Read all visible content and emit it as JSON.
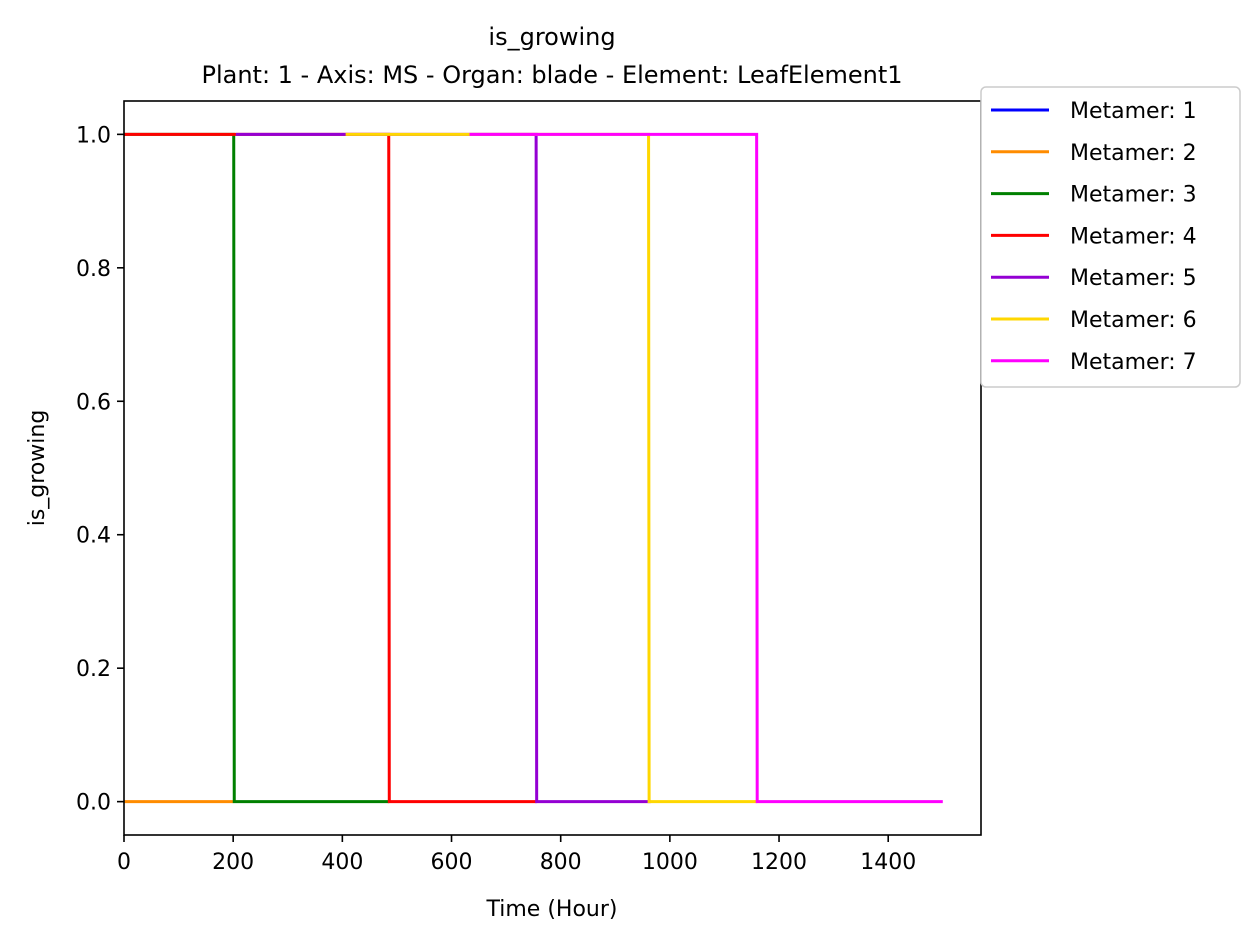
{
  "chart_data": {
    "type": "line",
    "title": "is_growing",
    "subtitle": "Plant: 1 - Axis: MS - Organ: blade - Element: LeafElement1",
    "xlabel": "Time (Hour)",
    "ylabel": "is_growing",
    "xlim": [
      0,
      1570
    ],
    "ylim": [
      -0.05,
      1.05
    ],
    "xticks": [
      0,
      200,
      400,
      600,
      800,
      1000,
      1200,
      1400
    ],
    "xtick_labels": [
      "0",
      "200",
      "400",
      "600",
      "800",
      "1000",
      "1200",
      "1400"
    ],
    "yticks": [
      0,
      0.2,
      0.4,
      0.6,
      0.8,
      1.0
    ],
    "ytick_labels": [
      "0.0",
      "0.2",
      "0.4",
      "0.6",
      "0.8",
      "1.0"
    ],
    "grid": false,
    "legend_position": "outside-top-right",
    "series": [
      {
        "name": "Metamer: 1",
        "color": "#0000ff",
        "x": [],
        "y": []
      },
      {
        "name": "Metamer: 2",
        "color": "#ff8c00",
        "x": [
          0,
          200
        ],
        "y": [
          0,
          0
        ]
      },
      {
        "name": "Metamer: 3",
        "color": "#008000",
        "x": [
          0,
          201,
          202,
          486
        ],
        "y": [
          1,
          1,
          0,
          0
        ]
      },
      {
        "name": "Metamer: 4",
        "color": "#ff0000",
        "x": [
          0,
          485,
          486,
          756
        ],
        "y": [
          1,
          1,
          0,
          0
        ]
      },
      {
        "name": "Metamer: 5",
        "color": "#9400d3",
        "x": [
          205,
          755,
          756,
          965
        ],
        "y": [
          1,
          1,
          0,
          0
        ]
      },
      {
        "name": "Metamer: 6",
        "color": "#ffd700",
        "x": [
          406,
          961,
          962,
          1160
        ],
        "y": [
          1,
          1,
          0,
          0
        ]
      },
      {
        "name": "Metamer: 7",
        "color": "#ff00ff",
        "x": [
          633,
          1159,
          1160,
          1500
        ],
        "y": [
          1,
          1,
          0,
          0
        ]
      }
    ]
  }
}
